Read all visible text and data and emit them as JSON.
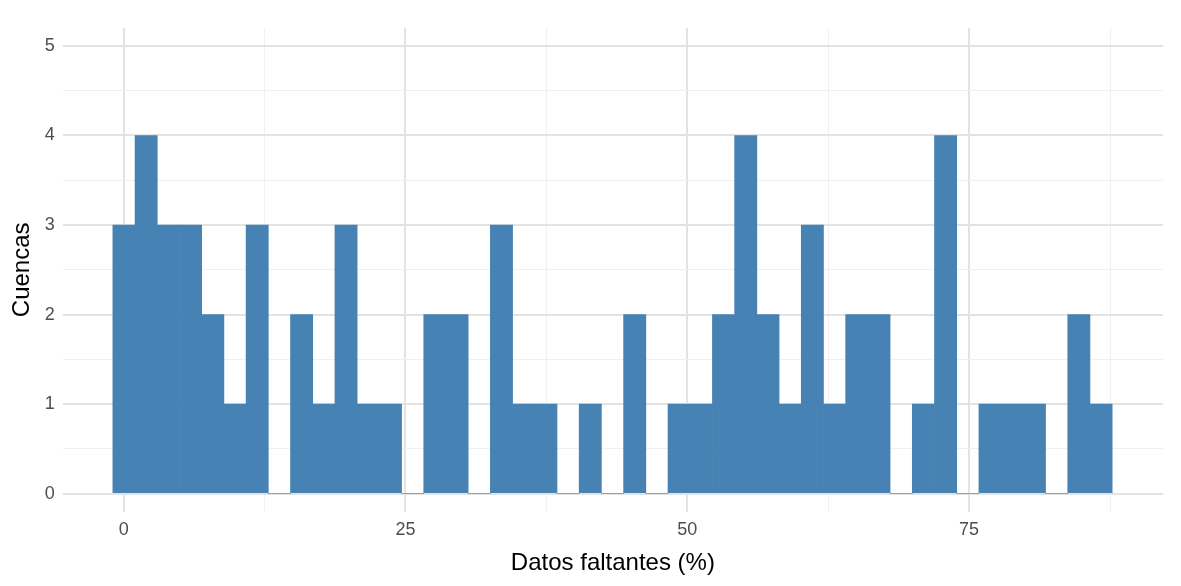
{
  "chart_data": {
    "type": "histogram",
    "xlabel": "Datos faltantes (%)",
    "ylabel": "Cuencas",
    "color": "#4682b4",
    "bins": [
      -0.96,
      1.01,
      2.98,
      4.95,
      6.92,
      8.89,
      10.86,
      12.83,
      14.8,
      16.77,
      18.74,
      20.71,
      22.68,
      24.65,
      26.62,
      28.59,
      30.56,
      32.53,
      34.5,
      36.47,
      38.44,
      40.41,
      42.38,
      44.35,
      46.32,
      48.29,
      50.26,
      52.23,
      54.2,
      56.17,
      58.14,
      60.11,
      62.08,
      64.05,
      66.02,
      67.99,
      69.96,
      71.93,
      73.9,
      75.87,
      77.84,
      79.81,
      81.78,
      83.75,
      85.72,
      87.69
    ],
    "values": [
      3,
      4,
      3,
      3,
      2,
      1,
      3,
      0,
      2,
      1,
      3,
      1,
      1,
      0,
      2,
      2,
      0,
      3,
      1,
      1,
      0,
      1,
      0,
      2,
      0,
      1,
      1,
      2,
      4,
      2,
      1,
      3,
      1,
      2,
      2,
      0,
      1,
      4,
      0,
      1,
      1,
      1,
      0,
      2,
      1
    ],
    "xlim": [
      -5.4,
      92.2
    ],
    "ylim": [
      -0.2,
      5.2
    ],
    "xticks": [
      0,
      {
        "value": 12.5,
        "label": null
      },
      25,
      {
        "value": 37.5,
        "label": null
      },
      50,
      {
        "value": 62.5,
        "label": null
      },
      75,
      {
        "value": 87.5,
        "label": null
      }
    ],
    "yticks": [
      0,
      {
        "value": 0.5,
        "label": null
      },
      1,
      {
        "value": 1.5,
        "label": null
      },
      2,
      {
        "value": 2.5,
        "label": null
      },
      3,
      {
        "value": 3.5,
        "label": null
      },
      4,
      {
        "value": 4.5,
        "label": null
      },
      5
    ],
    "grid": true,
    "legend": false
  }
}
